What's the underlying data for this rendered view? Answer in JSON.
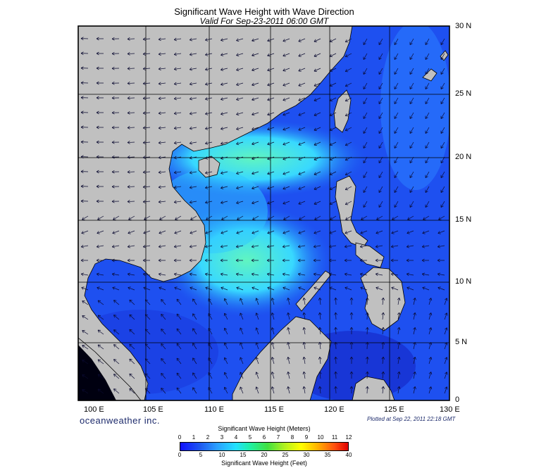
{
  "header": {
    "title": "Significant Wave Height with Wave Direction",
    "subtitle": "Valid For Sep-23-2011 06:00 GMT"
  },
  "map": {
    "lon_labels": [
      "100 E",
      "105 E",
      "110 E",
      "115 E",
      "120 E",
      "125 E",
      "130 E"
    ],
    "lat_labels": [
      "30 N",
      "25 N",
      "20 N",
      "15 N",
      "10 N",
      "5 N",
      "0"
    ],
    "land_color": "#c0c0c0",
    "sea_color_deep": "#1e4ff0",
    "sea_color_high": "#5af0c0"
  },
  "footer": {
    "brand": "oceanweather inc.",
    "plotted": "Plotted at Sep 22, 2011 22:18 GMT"
  },
  "colorbar": {
    "meters_title": "Significant Wave Height (Meters)",
    "meters_ticks": [
      "0",
      "1",
      "2",
      "3",
      "4",
      "5",
      "6",
      "7",
      "8",
      "9",
      "10",
      "11",
      "12"
    ],
    "feet_title": "Significant Wave Height (Feet)",
    "feet_ticks": [
      "0",
      "5",
      "10",
      "15",
      "20",
      "25",
      "30",
      "35",
      "40"
    ]
  }
}
